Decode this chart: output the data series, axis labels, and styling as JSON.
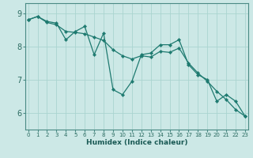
{
  "xlabel": "Humidex (Indice chaleur)",
  "background_color": "#cce8e6",
  "grid_color": "#aad4d0",
  "line_color": "#1e7a70",
  "x_values": [
    0,
    1,
    2,
    3,
    4,
    5,
    6,
    7,
    8,
    9,
    10,
    11,
    12,
    13,
    14,
    15,
    16,
    17,
    18,
    19,
    20,
    21,
    22,
    23
  ],
  "y_jagged": [
    8.8,
    8.9,
    8.75,
    8.7,
    8.2,
    8.45,
    8.6,
    7.75,
    8.4,
    6.7,
    6.55,
    6.95,
    7.75,
    7.8,
    8.05,
    8.05,
    8.2,
    7.45,
    7.15,
    7.0,
    6.35,
    6.55,
    6.35,
    5.9
  ],
  "y_smooth": [
    8.8,
    8.9,
    8.72,
    8.65,
    8.45,
    8.42,
    8.38,
    8.28,
    8.18,
    7.9,
    7.72,
    7.62,
    7.72,
    7.68,
    7.85,
    7.82,
    7.95,
    7.5,
    7.2,
    6.95,
    6.65,
    6.4,
    6.1,
    5.9
  ],
  "ylim": [
    5.5,
    9.3
  ],
  "yticks": [
    6,
    7,
    8,
    9
  ],
  "xticks": [
    0,
    1,
    2,
    3,
    4,
    5,
    6,
    7,
    8,
    9,
    10,
    11,
    12,
    13,
    14,
    15,
    16,
    17,
    18,
    19,
    20,
    21,
    22,
    23
  ]
}
